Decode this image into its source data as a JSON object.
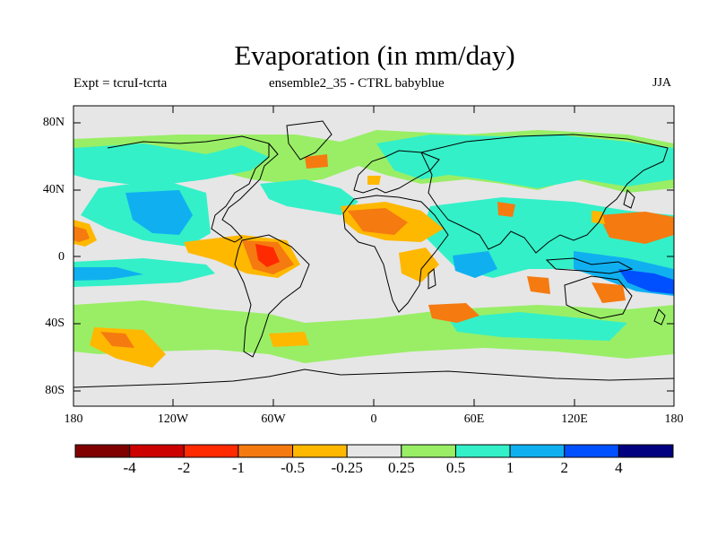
{
  "title": "Evaporation (in mm/day)",
  "subtitle_left": "Expt = tcruI-tcrta",
  "subtitle_center": "ensemble2_35 - CTRL babyblue",
  "subtitle_right": "JJA",
  "y_ticks": [
    "80N",
    "40N",
    "0",
    "40S",
    "80S"
  ],
  "x_ticks": [
    "180",
    "120W",
    "60W",
    "0",
    "60E",
    "120E",
    "180"
  ],
  "colorbar": {
    "colors": [
      "#800000",
      "#cc0000",
      "#ff2a00",
      "#f57a10",
      "#ffb800",
      "#e6e6e6",
      "#99ee66",
      "#33f0c8",
      "#10b0f0",
      "#0050ff",
      "#000080"
    ],
    "labels": [
      "-4",
      "-2",
      "-1",
      "-0.5",
      "-0.25",
      "0.25",
      "0.5",
      "1",
      "2",
      "4"
    ]
  },
  "colors": {
    "background": "#e6e6e6",
    "land_outline": "#000000"
  }
}
